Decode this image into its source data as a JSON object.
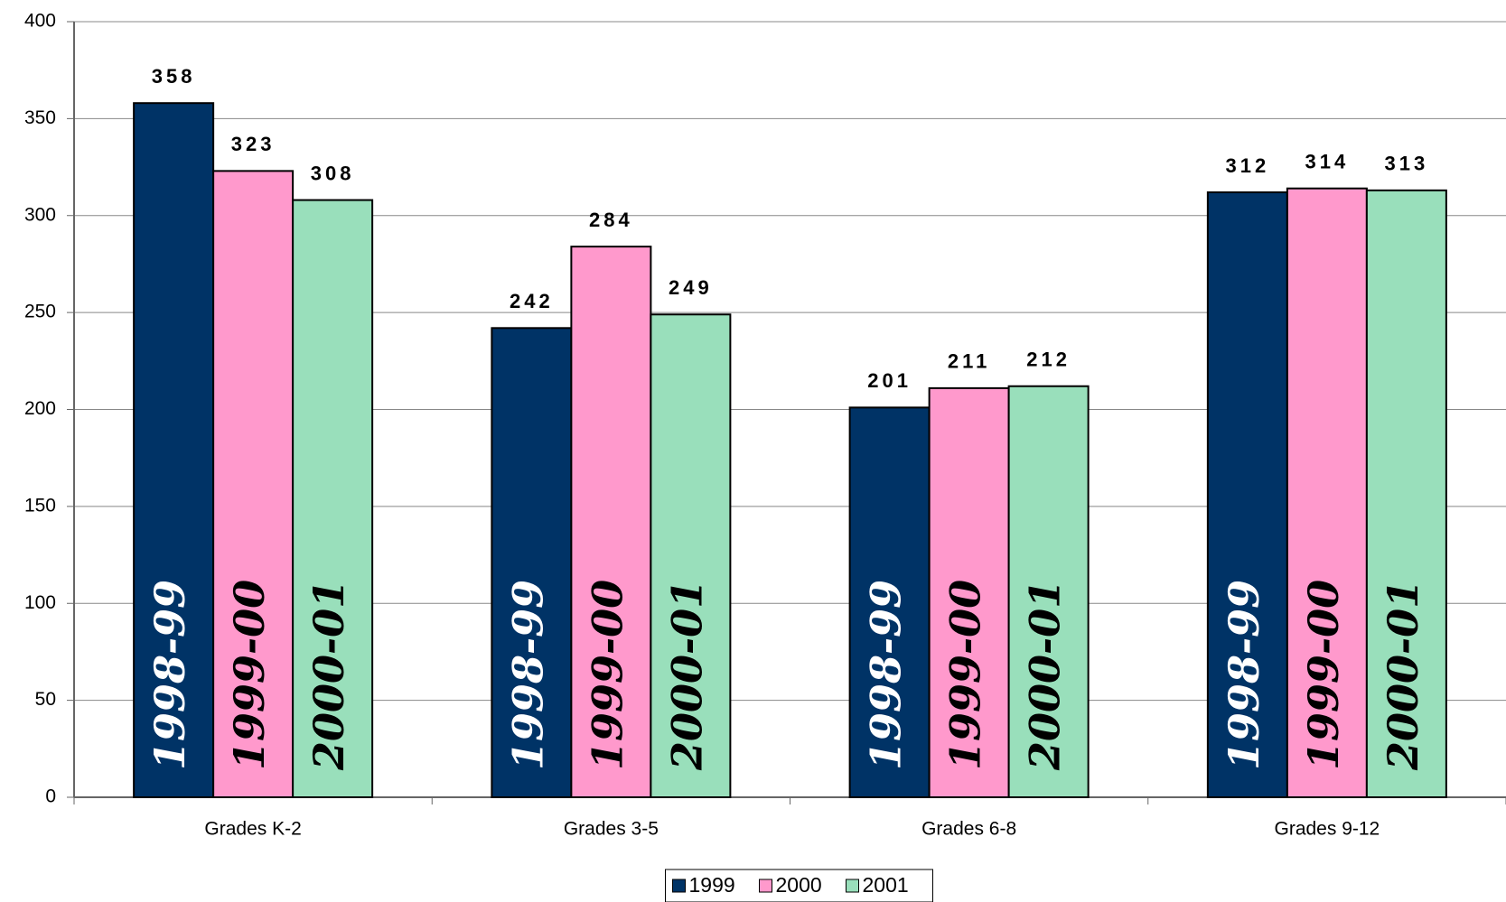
{
  "chart_data": {
    "type": "bar",
    "categories": [
      "Grades K-2",
      "Grades 3-5",
      "Grades 6-8",
      "Grades 9-12"
    ],
    "series": [
      {
        "name": "1999",
        "color": "#003366",
        "bar_text": "1998-99",
        "bar_text_color": "#ffffff",
        "values": [
          358,
          242,
          201,
          312
        ]
      },
      {
        "name": "2000",
        "color": "#ff99cc",
        "bar_text": "1999-00",
        "bar_text_color": "#000000",
        "values": [
          323,
          284,
          211,
          314
        ]
      },
      {
        "name": "2001",
        "color": "#99dfbb",
        "bar_text": "2000-01",
        "bar_text_color": "#000000",
        "values": [
          308,
          249,
          212,
          313
        ]
      }
    ],
    "ylim": [
      0,
      400
    ],
    "yticks": [
      0,
      50,
      100,
      150,
      200,
      250,
      300,
      350,
      400
    ],
    "grid": true,
    "legend": "bottom"
  }
}
